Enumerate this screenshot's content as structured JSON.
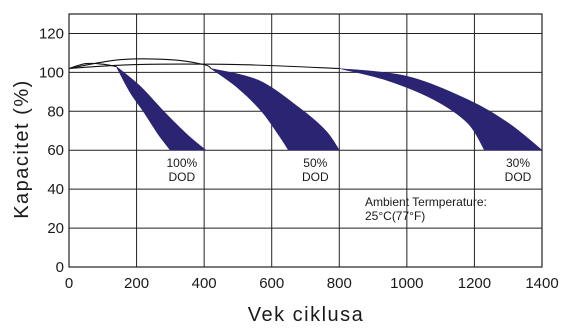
{
  "chart_data": {
    "type": "area",
    "title": "",
    "xlabel": "Vek ciklusa",
    "ylabel": "Kapacitet (%)",
    "xlim": [
      0,
      1400
    ],
    "ylim": [
      0,
      130
    ],
    "xticks": [
      0,
      200,
      400,
      600,
      800,
      1000,
      1200,
      1400
    ],
    "yticks": [
      0,
      20,
      40,
      60,
      80,
      100,
      120
    ],
    "grid": true,
    "band_color": "#2b2472",
    "series": [
      {
        "dod_label": "100%",
        "dod_suffix": "DOD",
        "envelope": [
          [
            0,
            102
          ],
          [
            50,
            104.5
          ],
          [
            100,
            104.2
          ],
          [
            140,
            103
          ]
        ],
        "outer_edge": [
          [
            140,
            103
          ],
          [
            210,
            93
          ],
          [
            280,
            80
          ],
          [
            350,
            68
          ],
          [
            405,
            60
          ]
        ],
        "inner_edge": [
          [
            140,
            103
          ],
          [
            180,
            90
          ],
          [
            220,
            80
          ],
          [
            265,
            68
          ],
          [
            300,
            60
          ]
        ]
      },
      {
        "dod_label": "50%",
        "dod_suffix": "DOD",
        "envelope": [
          [
            0,
            102
          ],
          [
            150,
            106.5
          ],
          [
            300,
            106.5
          ],
          [
            400,
            104
          ],
          [
            420,
            102
          ]
        ],
        "outer_edge": [
          [
            420,
            102
          ],
          [
            560,
            96
          ],
          [
            680,
            82
          ],
          [
            760,
            70
          ],
          [
            800,
            60
          ]
        ],
        "inner_edge": [
          [
            420,
            102
          ],
          [
            500,
            92
          ],
          [
            570,
            80
          ],
          [
            620,
            68
          ],
          [
            650,
            60
          ]
        ]
      },
      {
        "dod_label": "30%",
        "dod_suffix": "DOD",
        "envelope": [
          [
            0,
            102
          ],
          [
            200,
            104
          ],
          [
            500,
            104
          ],
          [
            800,
            102
          ]
        ],
        "outer_edge": [
          [
            800,
            102
          ],
          [
            1000,
            98
          ],
          [
            1180,
            86
          ],
          [
            1300,
            74
          ],
          [
            1400,
            60
          ]
        ],
        "inner_edge": [
          [
            800,
            102
          ],
          [
            940,
            96
          ],
          [
            1080,
            86
          ],
          [
            1180,
            74
          ],
          [
            1230,
            60
          ]
        ]
      }
    ],
    "annotation_lines": [
      "Ambient Termperature:",
      "25°C(77°F)"
    ]
  }
}
